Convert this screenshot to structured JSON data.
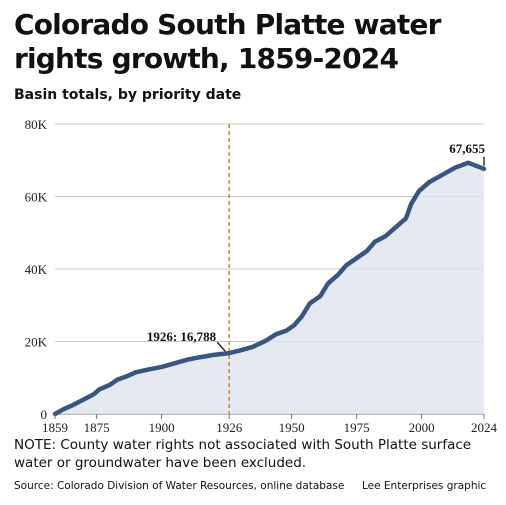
{
  "title": "Colorado South Platte water rights growth, 1859-2024",
  "subtitle": "Basin totals, by priority date",
  "note": "NOTE: County water rights not associated with South Platte surface water or groundwater have been excluded.",
  "source": "Source: Colorado Division of Water Resources, online database",
  "credit": "Lee Enterprises graphic",
  "colors": {
    "line": "#3a5580",
    "area": "#dde3ef",
    "marker": "#e08a1e",
    "grid": "#c8c8c8"
  },
  "chart_data": {
    "type": "area",
    "title": "Colorado South Platte water rights growth, 1859-2024",
    "subtitle": "Basin totals, by priority date",
    "xlim": [
      1859,
      2024
    ],
    "ylim": [
      0,
      80000
    ],
    "x_ticks": [
      1859,
      1875,
      1900,
      1926,
      1950,
      1975,
      2000,
      2024
    ],
    "y_ticks": [
      {
        "value": 0,
        "label": "0"
      },
      {
        "value": 20000,
        "label": "20K"
      },
      {
        "value": 40000,
        "label": "40K"
      },
      {
        "value": 60000,
        "label": "60K"
      },
      {
        "value": 80000,
        "label": "80K"
      }
    ],
    "grid": true,
    "series": [
      {
        "points": [
          [
            1859,
            0
          ],
          [
            1862,
            1200
          ],
          [
            1866,
            2500
          ],
          [
            1870,
            4000
          ],
          [
            1874,
            5500
          ],
          [
            1876,
            6800
          ],
          [
            1880,
            8000
          ],
          [
            1883,
            9500
          ],
          [
            1887,
            10500
          ],
          [
            1890,
            11500
          ],
          [
            1895,
            12300
          ],
          [
            1900,
            13000
          ],
          [
            1905,
            14000
          ],
          [
            1910,
            15000
          ],
          [
            1915,
            15700
          ],
          [
            1920,
            16300
          ],
          [
            1926,
            16788
          ],
          [
            1930,
            17500
          ],
          [
            1935,
            18500
          ],
          [
            1940,
            20200
          ],
          [
            1944,
            22000
          ],
          [
            1948,
            23000
          ],
          [
            1951,
            24500
          ],
          [
            1954,
            27000
          ],
          [
            1957,
            30500
          ],
          [
            1961,
            32500
          ],
          [
            1964,
            36000
          ],
          [
            1968,
            38500
          ],
          [
            1971,
            41000
          ],
          [
            1975,
            43000
          ],
          [
            1979,
            45000
          ],
          [
            1982,
            47500
          ],
          [
            1986,
            49000
          ],
          [
            1990,
            51500
          ],
          [
            1994,
            54000
          ],
          [
            1996,
            58000
          ],
          [
            1999,
            61500
          ],
          [
            2003,
            64000
          ],
          [
            2008,
            66000
          ],
          [
            2013,
            68000
          ],
          [
            2018,
            69300
          ],
          [
            2024,
            67655
          ]
        ]
      }
    ],
    "marker": {
      "x": 1926,
      "label": "1926: 16,788",
      "value": 16788
    },
    "end_label": {
      "x": 2024,
      "label": "67,655",
      "value": 67655
    }
  }
}
